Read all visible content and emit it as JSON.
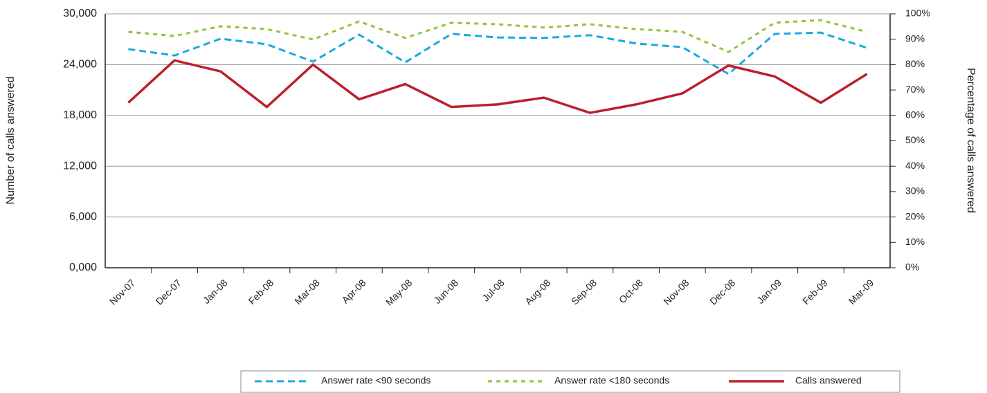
{
  "chart_data": {
    "type": "line",
    "y_label": "Number of calls answered",
    "y2_label": "Percentage of calls answered",
    "categories": [
      "Nov-07",
      "Dec-07",
      "Jan-08",
      "Feb-08",
      "Mar-08",
      "Apr-08",
      "May-08",
      "Jun-08",
      "Jul-08",
      "Aug-08",
      "Sep-08",
      "Oct-08",
      "Nov-08",
      "Dec-08",
      "Jan-09",
      "Feb-09",
      "Mar-09"
    ],
    "ylim": [
      0,
      30000
    ],
    "yticks": [
      {
        "value": 0,
        "label": "0,000"
      },
      {
        "value": 6000,
        "label": "6,000"
      },
      {
        "value": 12000,
        "label": "12,000"
      },
      {
        "value": 18000,
        "label": "18,000"
      },
      {
        "value": 24000,
        "label": "24,000"
      },
      {
        "value": 30000,
        "label": "30,000"
      }
    ],
    "y2lim": [
      0,
      100
    ],
    "y2ticks": [
      {
        "value": 0,
        "label": "0%"
      },
      {
        "value": 10,
        "label": "10%"
      },
      {
        "value": 20,
        "label": "20%"
      },
      {
        "value": 30,
        "label": "30%"
      },
      {
        "value": 40,
        "label": "40%"
      },
      {
        "value": 50,
        "label": "50%"
      },
      {
        "value": 60,
        "label": "60%"
      },
      {
        "value": 70,
        "label": "70%"
      },
      {
        "value": 80,
        "label": "80%"
      },
      {
        "value": 90,
        "label": "90%"
      },
      {
        "value": 100,
        "label": "100%"
      }
    ],
    "grid": true,
    "legend": "bottom",
    "series": [
      {
        "name": "Answer rate <90 seconds",
        "color": "#1ba8e0",
        "dash": "10,6",
        "axis": "y2",
        "values": [
          86.1,
          83.6,
          90.2,
          88.0,
          81.2,
          91.8,
          80.9,
          92.1,
          90.7,
          90.5,
          91.6,
          88.3,
          86.9,
          76.3,
          92.1,
          92.6,
          86.6
        ]
      },
      {
        "name": "Answer rate <180 seconds",
        "color": "#8dc63f",
        "dash": "6,6",
        "axis": "y2",
        "values": [
          92.9,
          91.3,
          95.1,
          94.0,
          89.9,
          97.0,
          90.5,
          96.5,
          95.9,
          94.6,
          95.9,
          94.0,
          92.9,
          85.0,
          96.5,
          97.5,
          92.9
        ]
      },
      {
        "name": "Calls answered",
        "color": "#be1e2d",
        "dash": "none",
        "values": [
          19500,
          24500,
          23200,
          19000,
          24000,
          19900,
          21700,
          19000,
          19300,
          20100,
          18300,
          19300,
          20600,
          23900,
          22600,
          19500,
          22900
        ]
      }
    ]
  }
}
